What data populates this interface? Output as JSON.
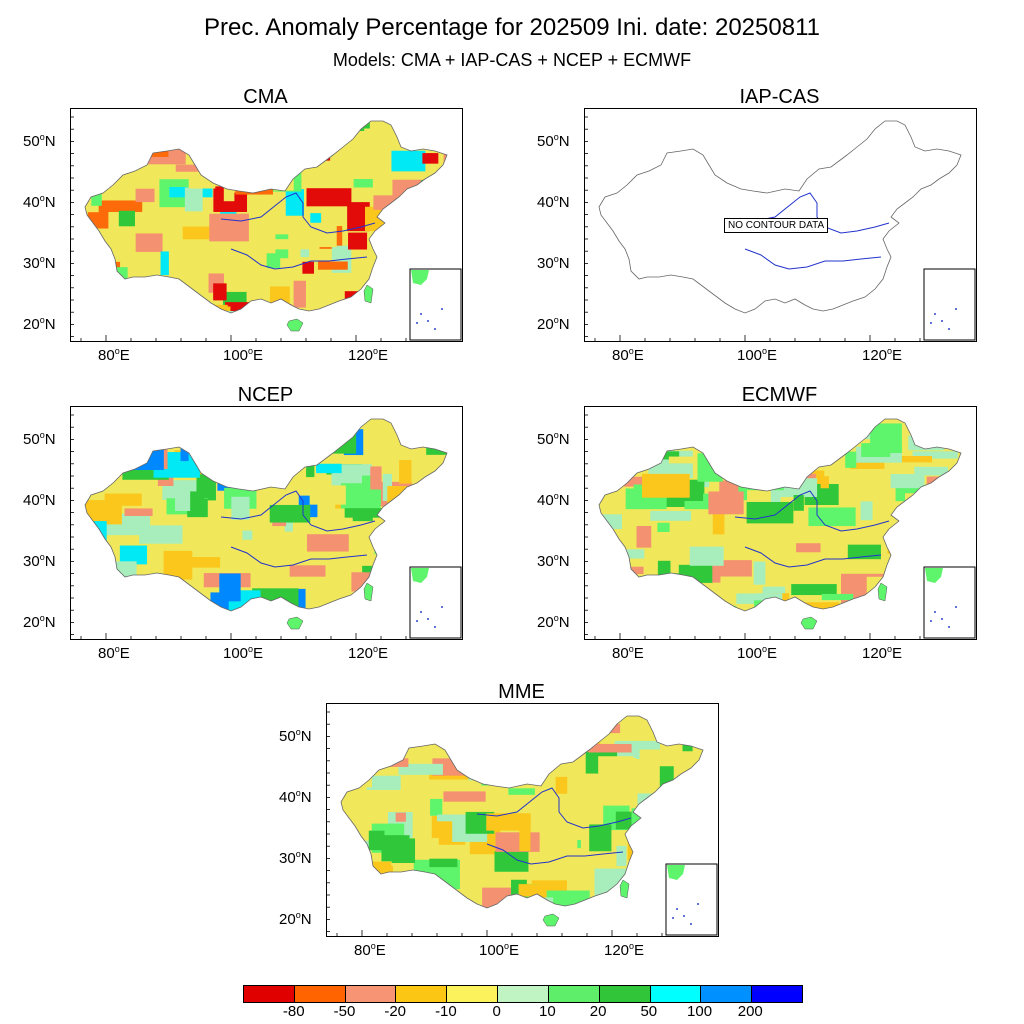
{
  "header": {
    "title": "Prec. Anomaly Percentage for 202509 Ini. date: 20250811",
    "subtitle": "Models: CMA + IAP-CAS + NCEP + ECMWF"
  },
  "axes": {
    "y_labels": [
      "50",
      "40",
      "30",
      "20"
    ],
    "x_labels": [
      "80",
      "100",
      "120"
    ],
    "lat_suffix": "N",
    "lon_suffix": "E",
    "degree_sup": "o"
  },
  "panels": [
    {
      "id": "cma",
      "title": "CMA",
      "palette": [
        "#f0e85a",
        "#a7eebc",
        "#5ef46c",
        "#30c83a",
        "#fbc71d",
        "#f49171",
        "#e30a0a",
        "#00e9f5",
        "#fc6a0a"
      ],
      "has_data": true
    },
    {
      "id": "iap",
      "title": "IAP-CAS",
      "has_data": false,
      "no_data_label": "NO CONTOUR DATA"
    },
    {
      "id": "ncep",
      "title": "NCEP",
      "palette": [
        "#f0e85a",
        "#a7eebc",
        "#5ef46c",
        "#30c83a",
        "#fbc71d",
        "#f49171",
        "#00e9f5",
        "#0089ff"
      ],
      "has_data": true
    },
    {
      "id": "ecmwf",
      "title": "ECMWF",
      "palette": [
        "#f0e85a",
        "#a7eebc",
        "#5ef46c",
        "#30c83a",
        "#fbc71d",
        "#f49171"
      ],
      "has_data": true
    },
    {
      "id": "mme",
      "title": "MME",
      "palette": [
        "#f0e85a",
        "#a7eebc",
        "#5ef46c",
        "#30c83a",
        "#fbc71d",
        "#f49171"
      ],
      "has_data": true
    }
  ],
  "colorbar": {
    "colors": [
      "#e00000",
      "#ff6400",
      "#f79474",
      "#fcc614",
      "#fcf25c",
      "#c0f5c3",
      "#5eee69",
      "#31c63a",
      "#00ffff",
      "#0090ff",
      "#0000ff"
    ],
    "labels": [
      "-80",
      "-50",
      "-20",
      "-10",
      "0",
      "10",
      "20",
      "50",
      "100",
      "200"
    ]
  }
}
